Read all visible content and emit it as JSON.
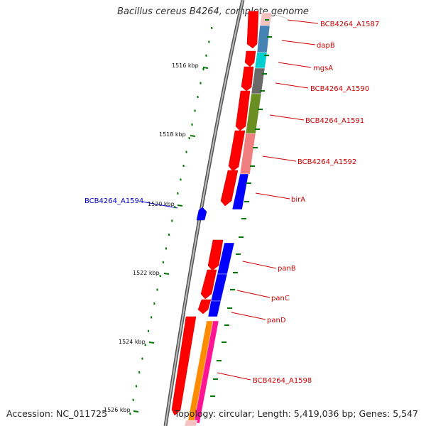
{
  "title": "Bacillus cereus B4264, complete genome",
  "accession": "Accession: NC_011725",
  "topology": "Topology: circular; Length: 5,419,036 bp; Genes: 5,547",
  "ticks": [
    "1516 kbp",
    "1518 kbp",
    "1520 kbp",
    "1522 kbp",
    "1524 kbp",
    "1526 kbp"
  ],
  "genes": [
    {
      "label": "BCB4264_A1587",
      "color": "#cc0000"
    },
    {
      "label": "dapB",
      "color": "#cc0000"
    },
    {
      "label": "mgsA",
      "color": "#cc0000"
    },
    {
      "label": "BCB4264_A1590",
      "color": "#cc0000"
    },
    {
      "label": "BCB4264_A1591",
      "color": "#cc0000"
    },
    {
      "label": "BCB4264_A1592",
      "color": "#cc0000"
    },
    {
      "label": "birA",
      "color": "#cc0000"
    },
    {
      "label": "BCB4264_A1594",
      "color": "#0000cc"
    },
    {
      "label": "panB",
      "color": "#cc0000"
    },
    {
      "label": "panC",
      "color": "#cc0000"
    },
    {
      "label": "panD",
      "color": "#cc0000"
    },
    {
      "label": "BCB4264_A1598",
      "color": "#cc0000"
    }
  ],
  "colors": {
    "cds": "#ff0000",
    "minus_strand": "#0000ff",
    "backbone": "#808080",
    "tick": "#007700",
    "cog_blue_gray": "#4682b4",
    "cog_cyan": "#00ced1",
    "cog_gray": "#696969",
    "cog_olive": "#6b8e23",
    "cog_pink": "#f08080",
    "cog_blue": "#0000ff",
    "cog_orange": "#ff8c00",
    "cog_magenta": "#ff1493"
  }
}
